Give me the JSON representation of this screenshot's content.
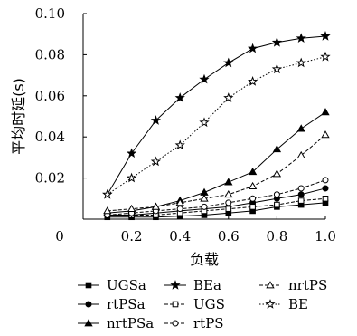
{
  "chart_data": {
    "type": "line",
    "xlabel": "负载",
    "ylabel": "平均时延(s)",
    "xlim": [
      0,
      1.0
    ],
    "ylim": [
      0,
      0.1
    ],
    "x": [
      0.1,
      0.2,
      0.3,
      0.4,
      0.5,
      0.6,
      0.7,
      0.8,
      0.9,
      1.0
    ],
    "x_ticks": [
      "0",
      "0.2",
      "0.4",
      "0.6",
      "0.8",
      "1.0"
    ],
    "y_ticks": [
      "0.02",
      "0.04",
      "0.06",
      "0.08",
      "0.10"
    ],
    "grid": false,
    "legend_position": "bottom",
    "series": [
      {
        "name": "UGSa",
        "marker": "square-filled",
        "dash": "solid",
        "values": [
          0.001,
          0.001,
          0.001,
          0.0015,
          0.002,
          0.003,
          0.004,
          0.006,
          0.007,
          0.008
        ]
      },
      {
        "name": "rtPSa",
        "marker": "circle-filled",
        "dash": "solid",
        "values": [
          0.002,
          0.002,
          0.003,
          0.004,
          0.005,
          0.006,
          0.008,
          0.01,
          0.012,
          0.015
        ]
      },
      {
        "name": "nrtPSa",
        "marker": "triangle-filled",
        "dash": "solid",
        "values": [
          0.003,
          0.004,
          0.006,
          0.009,
          0.013,
          0.018,
          0.023,
          0.034,
          0.044,
          0.052
        ]
      },
      {
        "name": "BEa",
        "marker": "star-filled",
        "dash": "solid",
        "values": [
          0.012,
          0.032,
          0.048,
          0.059,
          0.068,
          0.076,
          0.083,
          0.086,
          0.088,
          0.089
        ]
      },
      {
        "name": "UGS",
        "marker": "square-open",
        "dash": "dashed",
        "values": [
          0.002,
          0.002,
          0.002,
          0.003,
          0.004,
          0.005,
          0.006,
          0.007,
          0.009,
          0.01
        ]
      },
      {
        "name": "rtPS",
        "marker": "circle-open",
        "dash": "dashed",
        "values": [
          0.002,
          0.003,
          0.004,
          0.005,
          0.006,
          0.008,
          0.01,
          0.012,
          0.015,
          0.019
        ]
      },
      {
        "name": "nrtPS",
        "marker": "triangle-open",
        "dash": "dashed",
        "values": [
          0.004,
          0.005,
          0.006,
          0.008,
          0.01,
          0.012,
          0.016,
          0.022,
          0.031,
          0.041
        ]
      },
      {
        "name": "BE",
        "marker": "star-open",
        "dash": "dotted",
        "values": [
          0.012,
          0.02,
          0.028,
          0.036,
          0.047,
          0.059,
          0.067,
          0.073,
          0.076,
          0.079
        ]
      }
    ]
  }
}
